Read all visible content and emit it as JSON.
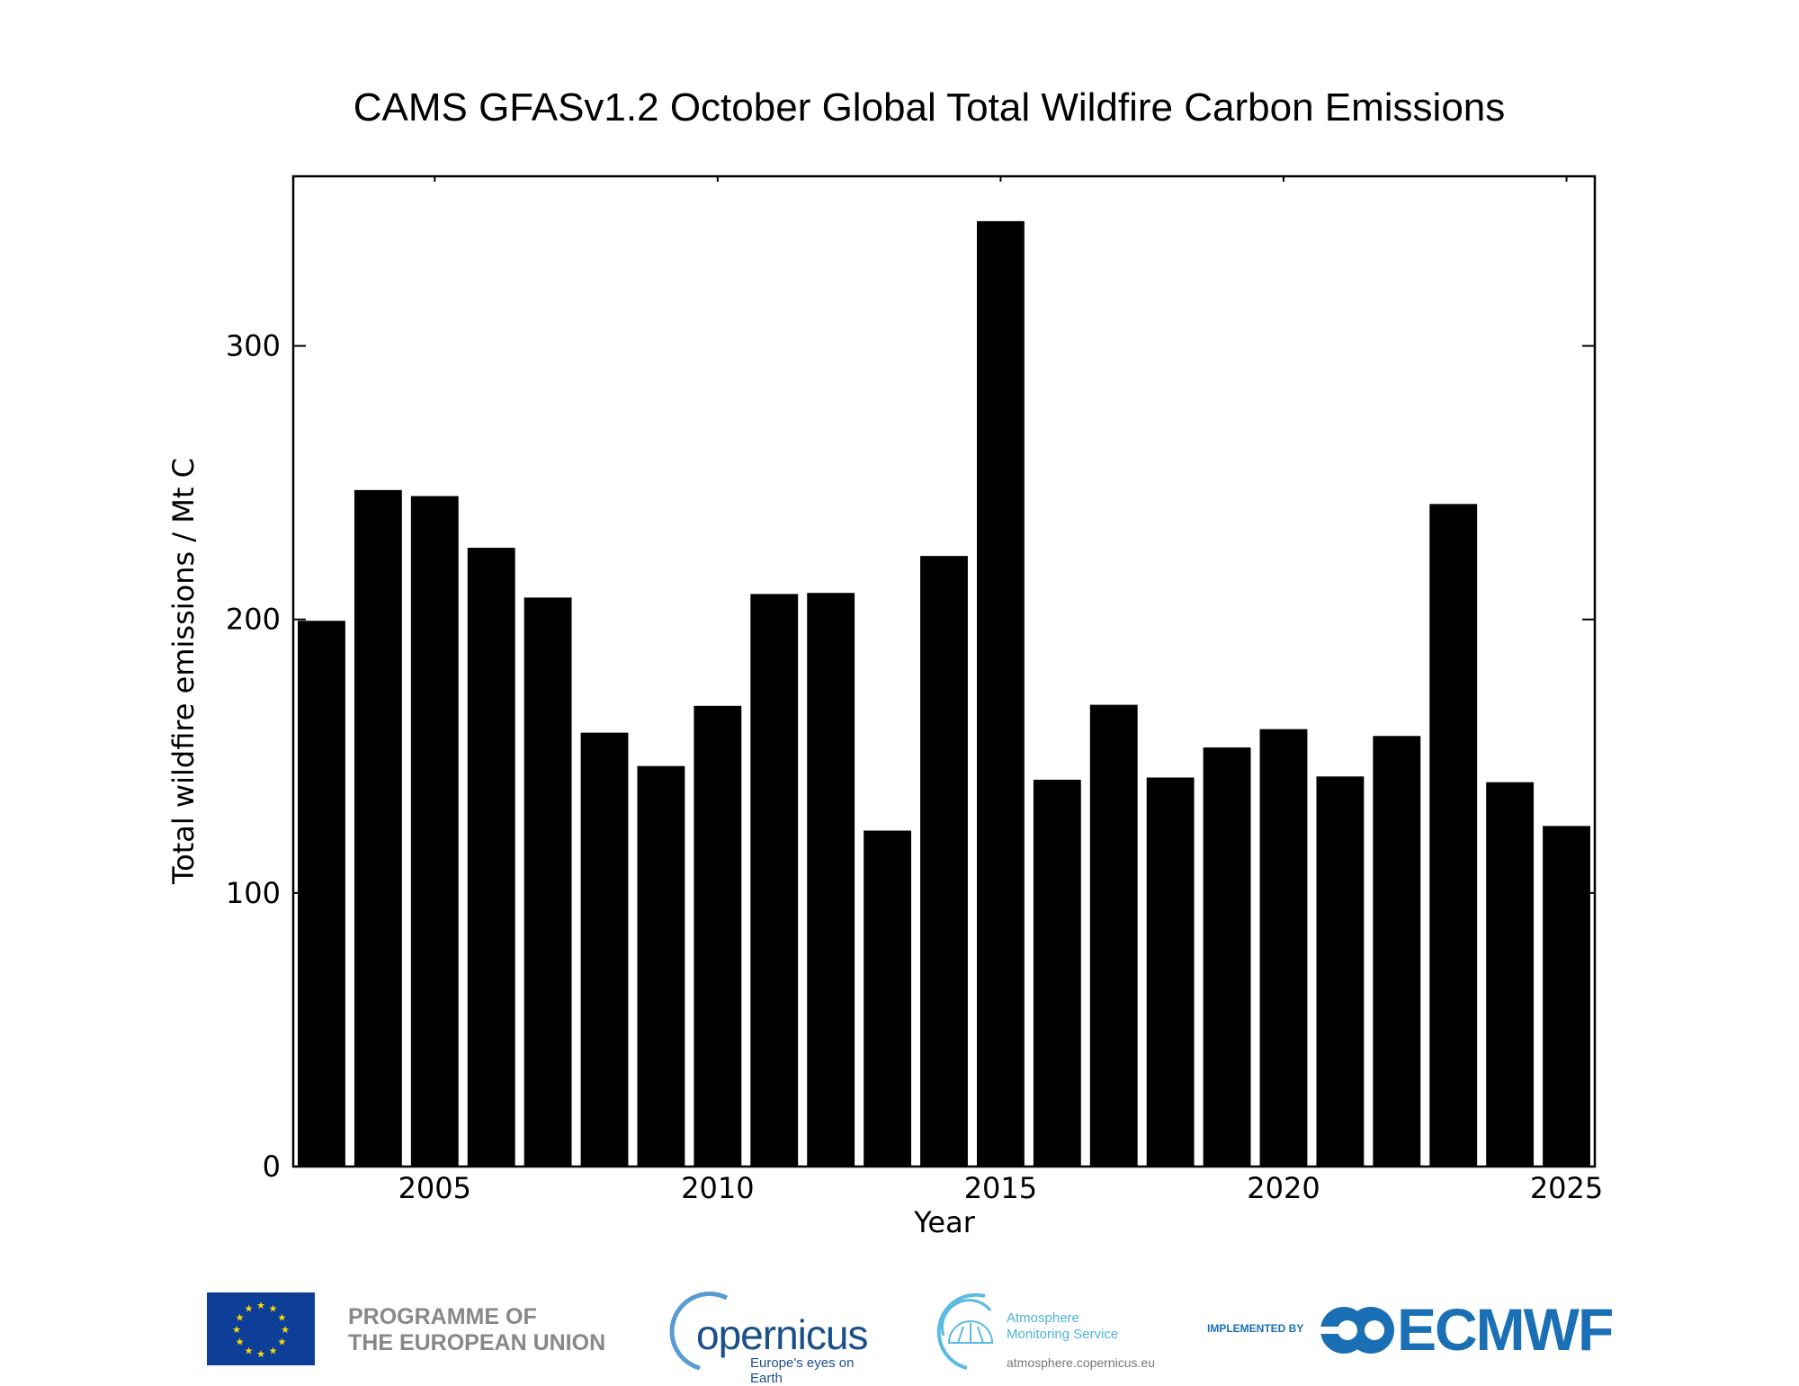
{
  "chart_data": {
    "type": "bar",
    "title": "CAMS GFASv1.2 October Global Total Wildfire Carbon Emissions",
    "xlabel": "Year",
    "ylabel": "Total wildfire emissions / Mt C",
    "categories": [
      2003,
      2004,
      2005,
      2006,
      2007,
      2008,
      2009,
      2010,
      2011,
      2012,
      2013,
      2014,
      2015,
      2016,
      2017,
      2018,
      2019,
      2020,
      2021,
      2022,
      2023,
      2024,
      2025
    ],
    "values": [
      199.5,
      247.3,
      245.1,
      226.2,
      208.0,
      158.6,
      146.4,
      168.4,
      209.3,
      209.7,
      122.8,
      223.2,
      345.6,
      141.4,
      168.8,
      142.2,
      153.2,
      159.9,
      142.6,
      157.4,
      242.2,
      140.5,
      124.5
    ],
    "xlim": [
      2002.5,
      2025.5
    ],
    "ylim": [
      0,
      362
    ],
    "xticks": [
      2005,
      2010,
      2015,
      2020,
      2025
    ],
    "yticks": [
      0,
      100,
      200,
      300
    ],
    "bar_width": 0.84,
    "bar_color": "#000000",
    "grid": false
  },
  "footer": {
    "eu_line1": "PROGRAMME OF",
    "eu_line2": "THE EUROPEAN UNION",
    "copernicus": "opernicus",
    "copernicus_tagline": "Europe's eyes on Earth",
    "cams_line1": "Atmosphere",
    "cams_line2": "Monitoring Service",
    "cams_url": "atmosphere.copernicus.eu",
    "implemented_by": "IMPLEMENTED BY",
    "ecmwf": "ECMWF"
  }
}
